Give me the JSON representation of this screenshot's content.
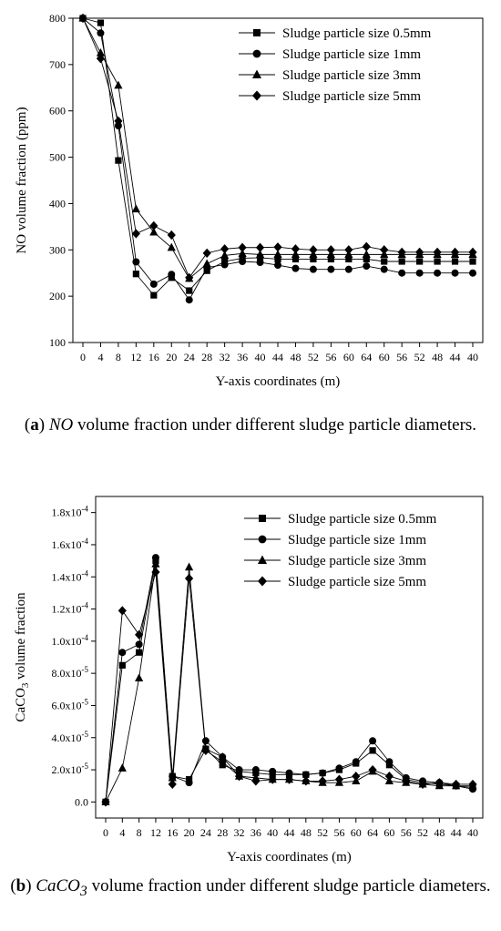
{
  "chart_data": [
    {
      "type": "line",
      "panel_label": "a",
      "caption_term": "NO",
      "caption_rest": "volume fraction under different sludge particle diameters.",
      "xlabel": "Y-axis coordinates (m)",
      "ylabel": "NO volume fraction (ppm)",
      "ylim": [
        100,
        800
      ],
      "yticks": [
        "100",
        "200",
        "300",
        "400",
        "500",
        "600",
        "700",
        "800"
      ],
      "ytick_values": [
        100,
        200,
        300,
        400,
        500,
        600,
        700,
        800
      ],
      "categories": [
        "0",
        "4",
        "8",
        "12",
        "16",
        "20",
        "24",
        "28",
        "32",
        "36",
        "40",
        "44",
        "48",
        "52",
        "56",
        "60",
        "64",
        "60",
        "56",
        "52",
        "48",
        "44",
        "40"
      ],
      "legend_position": "top-right",
      "grid": false,
      "series": [
        {
          "name": "Sludge particle size 0.5mm",
          "marker": "square",
          "values": [
            800,
            790,
            493,
            248,
            202,
            240,
            212,
            255,
            275,
            282,
            283,
            280,
            280,
            280,
            280,
            280,
            280,
            275,
            275,
            275,
            275,
            275,
            275
          ]
        },
        {
          "name": "Sludge particle size 1mm",
          "marker": "circle",
          "values": [
            800,
            768,
            568,
            274,
            226,
            247,
            192,
            262,
            268,
            275,
            273,
            267,
            260,
            258,
            258,
            258,
            265,
            258,
            250,
            250,
            250,
            250,
            250
          ]
        },
        {
          "name": "Sludge particle size 3mm",
          "marker": "triangle",
          "values": [
            800,
            725,
            655,
            388,
            338,
            305,
            238,
            270,
            288,
            292,
            290,
            290,
            290,
            290,
            290,
            290,
            290,
            290,
            290,
            290,
            290,
            290,
            290
          ]
        },
        {
          "name": "Sludge particle size 5mm",
          "marker": "diamond",
          "values": [
            800,
            713,
            578,
            335,
            352,
            332,
            240,
            293,
            302,
            305,
            305,
            306,
            302,
            300,
            300,
            300,
            307,
            300,
            295,
            295,
            295,
            295,
            295
          ]
        }
      ]
    },
    {
      "type": "line",
      "panel_label": "b",
      "caption_term": "CaCO",
      "caption_sub": "3",
      "caption_rest": "volume fraction under different sludge particle diameters.",
      "xlabel": "Y-axis coordinates (m)",
      "ylabel": "CaCO3 volume fraction",
      "ylabel_main": "CaCO",
      "ylabel_sub": "3",
      "ylabel_rest": " volume fraction",
      "ylim": [
        -1e-05,
        0.00019
      ],
      "yticks": [
        "0.0",
        "2.0x10-5",
        "4.0x10-5",
        "6.0x10-5",
        "8.0x10-5",
        "1.0x10-4",
        "1.2x10-4",
        "1.4x10-4",
        "1.6x10-4",
        "1.8x10-4"
      ],
      "ytick_values": [
        0,
        2e-05,
        4e-05,
        6e-05,
        8e-05,
        0.0001,
        0.00012,
        0.00014,
        0.00016,
        0.00018
      ],
      "categories": [
        "0",
        "4",
        "8",
        "12",
        "16",
        "20",
        "24",
        "28",
        "32",
        "36",
        "40",
        "44",
        "48",
        "52",
        "56",
        "60",
        "64",
        "60",
        "56",
        "52",
        "48",
        "44",
        "40"
      ],
      "legend_position": "top-right",
      "grid": false,
      "series": [
        {
          "name": "Sludge particle size 0.5mm",
          "marker": "square",
          "values": [
            0,
            8.5e-05,
            9.3e-05,
            0.00015,
            1.6e-05,
            1.4e-05,
            3.3e-05,
            2.3e-05,
            1.9e-05,
            1.8e-05,
            1.7e-05,
            1.7e-05,
            1.7e-05,
            1.8e-05,
            2e-05,
            2.4e-05,
            3.2e-05,
            2.3e-05,
            1.4e-05,
            1.2e-05,
            1.1e-05,
            1e-05,
            9e-06
          ]
        },
        {
          "name": "Sludge particle size 1mm",
          "marker": "circle",
          "values": [
            0,
            9.3e-05,
            9.8e-05,
            0.000152,
            1.6e-05,
            1.2e-05,
            3.8e-05,
            2.8e-05,
            2e-05,
            2e-05,
            1.9e-05,
            1.8e-05,
            1.7e-05,
            1.8e-05,
            2.1e-05,
            2.5e-05,
            3.8e-05,
            2.5e-05,
            1.5e-05,
            1.3e-05,
            1.2e-05,
            1e-05,
            8e-06
          ]
        },
        {
          "name": "Sludge particle size 3mm",
          "marker": "triangle",
          "values": [
            0,
            2.1e-05,
            7.7e-05,
            0.000148,
            1.5e-05,
            0.000146,
            3.3e-05,
            2.8e-05,
            1.6e-05,
            1.5e-05,
            1.4e-05,
            1.4e-05,
            1.3e-05,
            1.2e-05,
            1.2e-05,
            1.3e-05,
            1.9e-05,
            1.3e-05,
            1.2e-05,
            1.1e-05,
            1e-05,
            1e-05,
            1e-05
          ]
        },
        {
          "name": "Sludge particle size 5mm",
          "marker": "diamond",
          "values": [
            0,
            0.000119,
            0.000104,
            0.000143,
            1.1e-05,
            0.000139,
            3.2e-05,
            2.5e-05,
            1.6e-05,
            1.3e-05,
            1.4e-05,
            1.4e-05,
            1.3e-05,
            1.3e-05,
            1.4e-05,
            1.6e-05,
            2e-05,
            1.6e-05,
            1.3e-05,
            1.1e-05,
            1.2e-05,
            1.1e-05,
            1.1e-05
          ]
        }
      ]
    }
  ]
}
